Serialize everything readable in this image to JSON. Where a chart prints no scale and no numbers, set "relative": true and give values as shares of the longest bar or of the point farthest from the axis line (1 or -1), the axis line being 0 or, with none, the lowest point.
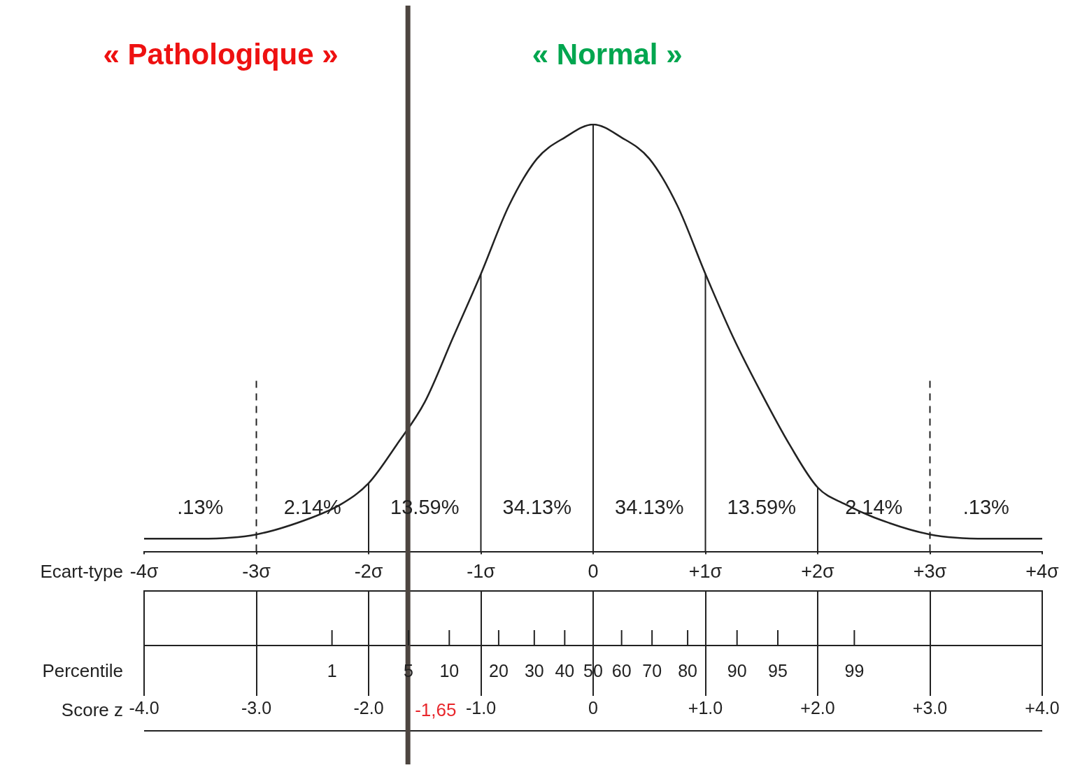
{
  "chart_data": {
    "type": "line",
    "relative": true,
    "marker": "none",
    "line_style": "solid",
    "x": [
      -4,
      -3.5,
      -3,
      -2.5,
      -2.25,
      -2,
      -1.75,
      -1.5,
      -1.25,
      -1,
      -0.75,
      -0.5,
      -0.25,
      0,
      0.25,
      0.5,
      0.75,
      1,
      1.25,
      1.5,
      1.75,
      2,
      2.25,
      2.5,
      3,
      3.5,
      4
    ],
    "series": [
      {
        "color": "#222222",
        "values": [
          0.03,
          0.03,
          0.04,
          0.08,
          0.11,
          0.16,
          0.25,
          0.35,
          0.5,
          0.65,
          0.81,
          0.92,
          0.97,
          1,
          0.97,
          0.92,
          0.81,
          0.65,
          0.5,
          0.37,
          0.25,
          0.15,
          0.11,
          0.08,
          0.04,
          0.03,
          0.03
        ]
      }
    ],
    "xlabel": "Ecart-type",
    "x2label": "Score z",
    "xlim": [
      -4,
      4
    ],
    "x2lim": [
      -4,
      4
    ],
    "xticks": [
      {
        "value": -4,
        "label": "-4σ"
      },
      {
        "value": -3,
        "label": "-3σ"
      },
      {
        "value": -2,
        "label": "-2σ"
      },
      {
        "value": -1,
        "label": "-1σ"
      },
      0,
      {
        "value": 1,
        "label": "+1σ"
      },
      {
        "value": 2,
        "label": "+2σ"
      },
      {
        "value": 3,
        "label": "+3σ"
      },
      {
        "value": 4,
        "label": "+4σ"
      }
    ],
    "x2ticks": [
      {
        "value": -4,
        "label": "-4.0"
      },
      {
        "value": -3,
        "label": "-3.0"
      },
      {
        "value": -2,
        "label": "-2.0"
      },
      {
        "value": -1,
        "label": "-1.0"
      },
      0,
      {
        "value": 1,
        "label": "+1.0"
      },
      {
        "value": 2,
        "label": "+2.0"
      },
      {
        "value": 3,
        "label": "+3.0"
      },
      {
        "value": 4,
        "label": "+4.0"
      }
    ],
    "ref_lines": [
      {
        "axis": "x",
        "value": -3,
        "line_style": "dashed"
      },
      {
        "axis": "x",
        "value": -2
      },
      {
        "axis": "x",
        "value": -1
      },
      {
        "axis": "x",
        "value": 0
      },
      {
        "axis": "x",
        "value": 1
      },
      {
        "axis": "x",
        "value": 2
      },
      {
        "axis": "x",
        "value": 3,
        "line_style": "dashed"
      },
      {
        "axis": "x",
        "value": -1.65,
        "label": "-1,65",
        "color": "#4d4540"
      }
    ],
    "annotations": [
      "« Pathologique »",
      "« Normal »",
      ".13%",
      "2.14%",
      "13.59%",
      "34.13%",
      "34.13%",
      "13.59%",
      "2.14%",
      ".13%",
      "Percentile",
      "1",
      "5",
      "10",
      "20",
      "30",
      "40",
      "50",
      "60",
      "70",
      "80",
      "90",
      "95",
      "99"
    ]
  }
}
